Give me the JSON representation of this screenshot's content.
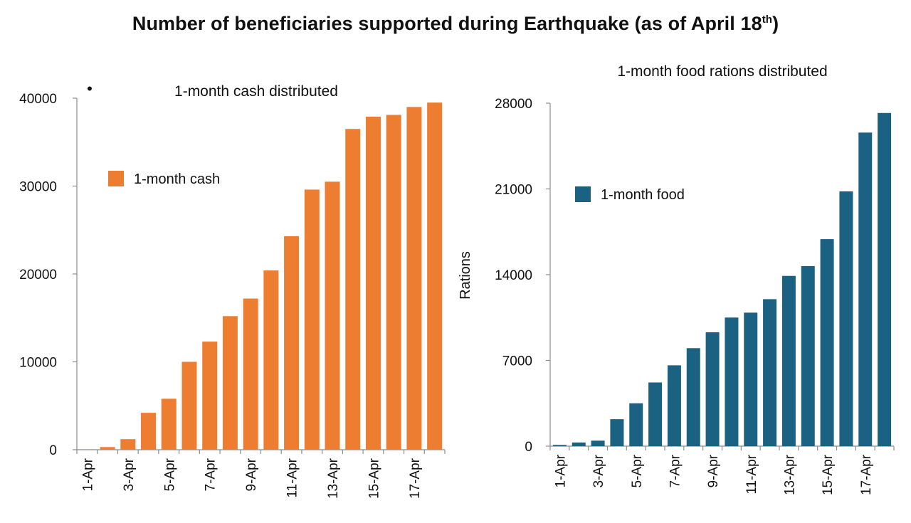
{
  "page": {
    "title": "Number of beneficiaries supported during Earthquake (as of April 18",
    "title_suffix": "th",
    "title_close": ")"
  },
  "chart_data": [
    {
      "type": "bar",
      "title": "1-month cash distributed",
      "bullet": "•",
      "xlabel": "",
      "ylabel": "",
      "color": "#ED7D31",
      "legend": "1-month cash",
      "legend_position": "upper-left",
      "ylim": [
        0,
        40000
      ],
      "yticks": [
        "0",
        "10000",
        "20000",
        "30000",
        "40000"
      ],
      "ytick_values": [
        0,
        10000,
        20000,
        30000,
        40000
      ],
      "categories": [
        "1-Apr",
        "2-Apr",
        "3-Apr",
        "4-Apr",
        "5-Apr",
        "6-Apr",
        "7-Apr",
        "8-Apr",
        "9-Apr",
        "10-Apr",
        "11-Apr",
        "12-Apr",
        "13-Apr",
        "14-Apr",
        "15-Apr",
        "16-Apr",
        "17-Apr",
        "18-Apr"
      ],
      "xtick_labels": [
        "1-Apr",
        "",
        "3-Apr",
        "",
        "5-Apr",
        "",
        "7-Apr",
        "",
        "9-Apr",
        "",
        "11-Apr",
        "",
        "13-Apr",
        "",
        "15-Apr",
        "",
        "17-Apr",
        ""
      ],
      "values": [
        50,
        300,
        1200,
        4200,
        5800,
        10000,
        12300,
        15200,
        17200,
        20400,
        24300,
        29600,
        30500,
        36500,
        37900,
        38100,
        39000,
        39500
      ]
    },
    {
      "type": "bar",
      "title": "1-month food rations distributed",
      "xlabel": "",
      "ylabel": "Rations",
      "color": "#1B6282",
      "legend": "1-month food",
      "legend_position": "upper-left",
      "ylim": [
        0,
        28000
      ],
      "yticks": [
        "0",
        "7000",
        "14000",
        "21000",
        "28000"
      ],
      "ytick_values": [
        0,
        7000,
        14000,
        21000,
        28000
      ],
      "categories": [
        "1-Apr",
        "2-Apr",
        "3-Apr",
        "4-Apr",
        "5-Apr",
        "6-Apr",
        "7-Apr",
        "8-Apr",
        "9-Apr",
        "10-Apr",
        "11-Apr",
        "12-Apr",
        "13-Apr",
        "14-Apr",
        "15-Apr",
        "16-Apr",
        "17-Apr",
        "18-Apr"
      ],
      "xtick_labels": [
        "1-Apr",
        "",
        "3-Apr",
        "",
        "5-Apr",
        "",
        "7-Apr",
        "",
        "9-Apr",
        "",
        "11-Apr",
        "",
        "13-Apr",
        "",
        "15-Apr",
        "",
        "17-Apr",
        ""
      ],
      "values": [
        100,
        300,
        450,
        2200,
        3500,
        5200,
        6600,
        8000,
        9300,
        10500,
        10900,
        12000,
        13900,
        14700,
        16900,
        20800,
        25600,
        27200
      ]
    }
  ]
}
